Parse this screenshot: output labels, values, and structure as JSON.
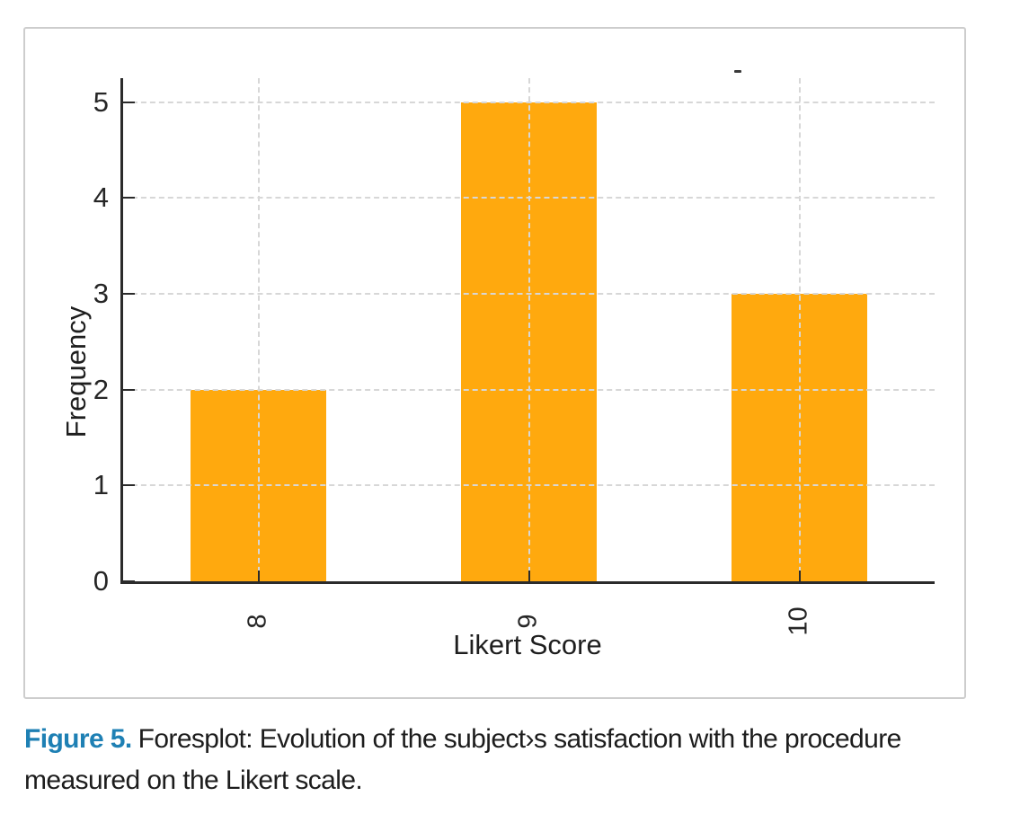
{
  "chart_data": {
    "type": "bar",
    "title": "",
    "categories": [
      "8",
      "9",
      "10"
    ],
    "values": [
      2,
      5,
      3
    ],
    "xlabel": "Likert Score",
    "ylabel": "Frequency",
    "yticks": [
      0,
      1,
      2,
      3,
      4,
      5
    ],
    "ylim": [
      0,
      5.25
    ],
    "grid": "dashed gray, horizontal at integer ticks and vertical at category centers, drawn over bars",
    "legend_position": "none",
    "bar_color": "#FFA90E"
  },
  "figure": {
    "stray_mark": "-"
  },
  "caption": {
    "label": "Figure 5.",
    "text": "Foresplot: Evolution of the subject›s satisfaction with the procedure measured on the Likert scale."
  },
  "colors": {
    "bar": "#FFA90E",
    "axis": "#2b2b2b",
    "grid": "#d7d7d7",
    "figure_border": "#cdcdcd",
    "caption_label": "#1e80b4",
    "caption_text": "#1d1d1d"
  }
}
